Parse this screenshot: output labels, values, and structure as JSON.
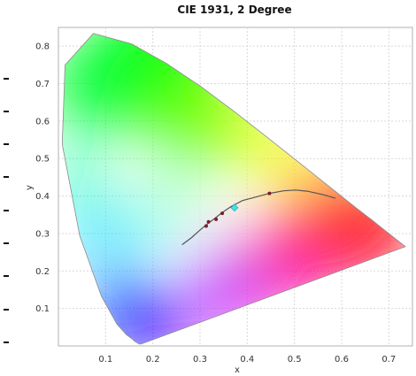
{
  "chart_data": {
    "type": "scatter",
    "title": "CIE 1931, 2 Degree",
    "xlabel": "x",
    "ylabel": "y",
    "xlim": [
      0,
      0.75
    ],
    "ylim": [
      0,
      0.85
    ],
    "x_ticks": [
      0.1,
      0.2,
      0.3,
      0.4,
      0.5,
      0.6,
      0.7
    ],
    "y_ticks": [
      0.1,
      0.2,
      0.3,
      0.4,
      0.5,
      0.6,
      0.7,
      0.8
    ],
    "x_tick_labels": [
      "0.1",
      "0.2",
      "0.3",
      "0.4",
      "0.5",
      "0.6",
      "0.7"
    ],
    "y_tick_labels": [
      "0.1",
      "0.2",
      "0.3",
      "0.4",
      "0.5",
      "0.6",
      "0.7",
      "0.8"
    ],
    "grid": true,
    "spectral_locus": [
      [
        0.175,
        0.005
      ],
      [
        0.174,
        0.005
      ],
      [
        0.172,
        0.005
      ],
      [
        0.17,
        0.006
      ],
      [
        0.166,
        0.009
      ],
      [
        0.161,
        0.013
      ],
      [
        0.156,
        0.019
      ],
      [
        0.144,
        0.03
      ],
      [
        0.124,
        0.058
      ],
      [
        0.091,
        0.133
      ],
      [
        0.045,
        0.295
      ],
      [
        0.008,
        0.538
      ],
      [
        0.014,
        0.75
      ],
      [
        0.074,
        0.834
      ],
      [
        0.155,
        0.806
      ],
      [
        0.229,
        0.754
      ],
      [
        0.302,
        0.692
      ],
      [
        0.374,
        0.624
      ],
      [
        0.444,
        0.555
      ],
      [
        0.512,
        0.487
      ],
      [
        0.575,
        0.424
      ],
      [
        0.627,
        0.372
      ],
      [
        0.666,
        0.334
      ],
      [
        0.692,
        0.308
      ],
      [
        0.735,
        0.265
      ]
    ],
    "planckian_locus": [
      [
        0.262,
        0.27
      ],
      [
        0.282,
        0.289
      ],
      [
        0.297,
        0.306
      ],
      [
        0.313,
        0.323
      ],
      [
        0.331,
        0.34
      ],
      [
        0.346,
        0.355
      ],
      [
        0.366,
        0.372
      ],
      [
        0.39,
        0.388
      ],
      [
        0.414,
        0.396
      ],
      [
        0.447,
        0.407
      ],
      [
        0.477,
        0.414
      ],
      [
        0.502,
        0.416
      ],
      [
        0.527,
        0.413
      ],
      [
        0.56,
        0.404
      ],
      [
        0.587,
        0.394
      ]
    ],
    "points": [
      {
        "x": 0.313,
        "y": 0.32
      },
      {
        "x": 0.318,
        "y": 0.331
      },
      {
        "x": 0.334,
        "y": 0.338
      },
      {
        "x": 0.347,
        "y": 0.354
      },
      {
        "x": 0.447,
        "y": 0.407
      }
    ],
    "marker": {
      "x": 0.373,
      "y": 0.369,
      "shape": "diamond"
    },
    "colors": {
      "locus_line": "#555555",
      "point": "#7a1f2a",
      "marker": "#40e0e8",
      "grid": "#d8d8d8"
    }
  }
}
